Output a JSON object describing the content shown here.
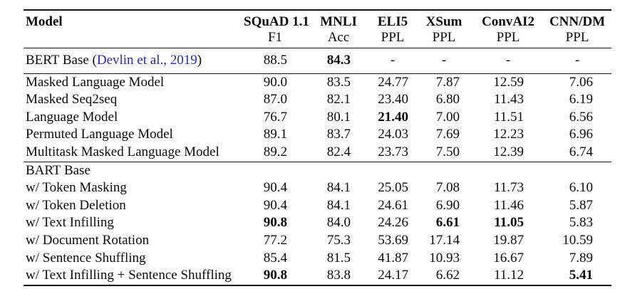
{
  "table": {
    "citation_color": "#2a2ab8",
    "columns": [
      {
        "title": "Model",
        "sub": ""
      },
      {
        "title": "SQuAD 1.1",
        "sub": "F1"
      },
      {
        "title": "MNLI",
        "sub": "Acc"
      },
      {
        "title": "ELI5",
        "sub": "PPL"
      },
      {
        "title": "XSum",
        "sub": "PPL"
      },
      {
        "title": "ConvAI2",
        "sub": "PPL"
      },
      {
        "title": "CNN/DM",
        "sub": "PPL"
      }
    ],
    "sections": [
      {
        "name": "bert",
        "rows": [
          {
            "label_prefix": "BERT Base (",
            "citation": "Devlin et al., 2019",
            "label_suffix": ")",
            "values": [
              "88.5",
              "84.3",
              "-",
              "-",
              "-",
              "-"
            ],
            "bold": [
              1
            ]
          }
        ]
      },
      {
        "name": "pretraining-objectives",
        "rows": [
          {
            "label": "Masked Language Model",
            "values": [
              "90.0",
              "83.5",
              "24.77",
              "7.87",
              "12.59",
              "7.06"
            ],
            "bold": []
          },
          {
            "label": "Masked Seq2seq",
            "values": [
              "87.0",
              "82.1",
              "23.40",
              "6.80",
              "11.43",
              "6.19"
            ],
            "bold": []
          },
          {
            "label": "Language Model",
            "values": [
              "76.7",
              "80.1",
              "21.40",
              "7.00",
              "11.51",
              "6.56"
            ],
            "bold": [
              2
            ]
          },
          {
            "label": "Permuted Language Model",
            "values": [
              "89.1",
              "83.7",
              "24.03",
              "7.69",
              "12.23",
              "6.96"
            ],
            "bold": []
          },
          {
            "label": "Multitask Masked Language Model",
            "values": [
              "89.2",
              "82.4",
              "23.73",
              "7.50",
              "12.39",
              "6.74"
            ],
            "bold": []
          }
        ]
      },
      {
        "name": "bart-base",
        "rows": [
          {
            "label": "BART Base",
            "values": [
              "",
              "",
              "",
              "",
              "",
              ""
            ],
            "bold": []
          },
          {
            "label": "w/ Token Masking",
            "values": [
              "90.4",
              "84.1",
              "25.05",
              "7.08",
              "11.73",
              "6.10"
            ],
            "bold": []
          },
          {
            "label": "w/ Token Deletion",
            "values": [
              "90.4",
              "84.1",
              "24.61",
              "6.90",
              "11.46",
              "5.87"
            ],
            "bold": []
          },
          {
            "label": "w/ Text Infilling",
            "values": [
              "90.8",
              "84.0",
              "24.26",
              "6.61",
              "11.05",
              "5.83"
            ],
            "bold": [
              0,
              3,
              4
            ]
          },
          {
            "label": "w/ Document Rotation",
            "values": [
              "77.2",
              "75.3",
              "53.69",
              "17.14",
              "19.87",
              "10.59"
            ],
            "bold": []
          },
          {
            "label": "w/ Sentence Shuffling",
            "values": [
              "85.4",
              "81.5",
              "41.87",
              "10.93",
              "16.67",
              "7.89"
            ],
            "bold": []
          },
          {
            "label": "w/ Text Infilling + Sentence Shuffling",
            "values": [
              "90.8",
              "83.8",
              "24.17",
              "6.62",
              "11.12",
              "5.41"
            ],
            "bold": [
              0,
              5
            ]
          }
        ]
      }
    ]
  }
}
